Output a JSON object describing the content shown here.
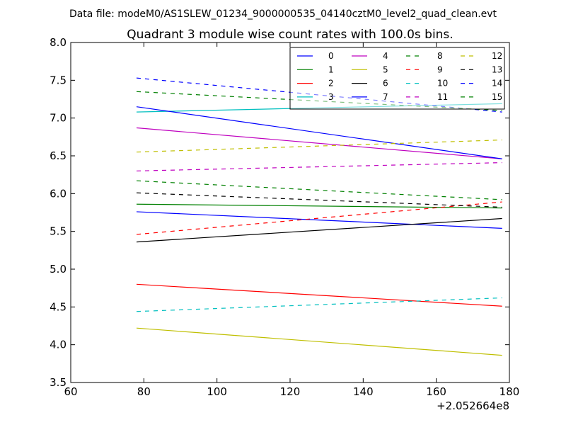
{
  "suptitle": "Data file: modeM0/AS1SLEW_01234_9000000535_04140cztM0_level2_quad_clean.evt",
  "chart_data": {
    "type": "line",
    "title": "Quadrant 3 module wise count rates with 100.0s bins.",
    "xlabel": "",
    "ylabel": "",
    "x_offset_label": "+2.052664e8",
    "xlim": [
      60,
      180
    ],
    "ylim": [
      3.5,
      8.0
    ],
    "xticks": [
      60,
      80,
      100,
      120,
      140,
      160,
      180
    ],
    "yticks": [
      3.5,
      4.0,
      4.5,
      5.0,
      5.5,
      6.0,
      6.5,
      7.0,
      7.5,
      8.0
    ],
    "x": [
      78,
      178
    ],
    "grid": false,
    "legend_position": "top-right",
    "legend_columns": 4,
    "series": [
      {
        "name": "0",
        "values": [
          5.76,
          5.54
        ],
        "color": "#0000ff",
        "dashed": false
      },
      {
        "name": "1",
        "values": [
          5.86,
          5.81
        ],
        "color": "#008000",
        "dashed": false
      },
      {
        "name": "2",
        "values": [
          4.8,
          4.51
        ],
        "color": "#ff0000",
        "dashed": false
      },
      {
        "name": "3",
        "values": [
          7.08,
          7.19
        ],
        "color": "#00bfbf",
        "dashed": false
      },
      {
        "name": "4",
        "values": [
          6.87,
          6.46
        ],
        "color": "#bf00bf",
        "dashed": false
      },
      {
        "name": "5",
        "values": [
          4.22,
          3.86
        ],
        "color": "#bfbf00",
        "dashed": false
      },
      {
        "name": "6",
        "values": [
          5.36,
          5.67
        ],
        "color": "#000000",
        "dashed": false
      },
      {
        "name": "7",
        "values": [
          7.15,
          6.46
        ],
        "color": "#0000ff",
        "dashed": false
      },
      {
        "name": "8",
        "values": [
          6.17,
          5.92
        ],
        "color": "#008000",
        "dashed": true
      },
      {
        "name": "9",
        "values": [
          5.46,
          5.89
        ],
        "color": "#ff0000",
        "dashed": true
      },
      {
        "name": "10",
        "values": [
          4.44,
          4.62
        ],
        "color": "#00bfbf",
        "dashed": true
      },
      {
        "name": "11",
        "values": [
          6.3,
          6.41
        ],
        "color": "#bf00bf",
        "dashed": true
      },
      {
        "name": "12",
        "values": [
          6.55,
          6.71
        ],
        "color": "#bfbf00",
        "dashed": true
      },
      {
        "name": "13",
        "values": [
          6.01,
          5.82
        ],
        "color": "#000000",
        "dashed": true
      },
      {
        "name": "14",
        "values": [
          7.53,
          7.08
        ],
        "color": "#0000ff",
        "dashed": true
      },
      {
        "name": "15",
        "values": [
          7.35,
          7.1
        ],
        "color": "#008000",
        "dashed": true
      }
    ]
  }
}
